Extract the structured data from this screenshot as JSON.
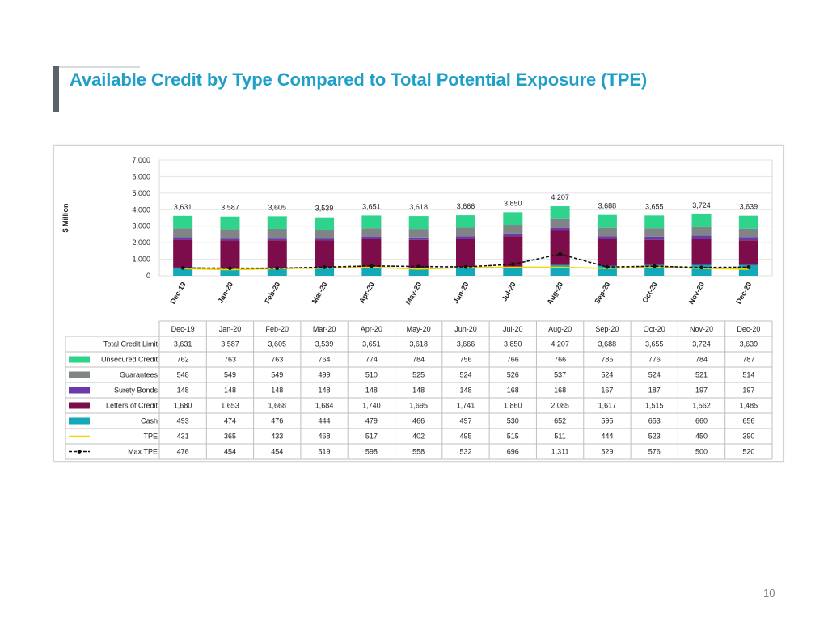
{
  "slide": {
    "title": "Available Credit by Type Compared to Total Potential Exposure (TPE)",
    "page_number": "10"
  },
  "colors": {
    "title": "#1f9fc7",
    "unsecured_credit": "#2ed48b",
    "guarantees": "#7f8487",
    "surety_bonds": "#6a3aa8",
    "letters_of_credit": "#7d0d4a",
    "cash": "#13a9b8",
    "tpe": "#f5d400",
    "max_tpe": "#111111"
  },
  "chart_data": {
    "type": "bar",
    "stacked": true,
    "ylabel": "$ Million",
    "ylim": [
      0,
      7000
    ],
    "yticks": [
      "0",
      "1,000",
      "2,000",
      "3,000",
      "4,000",
      "5,000",
      "6,000",
      "7,000"
    ],
    "grid": true,
    "categories": [
      "Dec-19",
      "Jan-20",
      "Feb-20",
      "Mar-20",
      "Apr-20",
      "May-20",
      "Jun-20",
      "Jul-20",
      "Aug-20",
      "Sep-20",
      "Oct-20",
      "Nov-20",
      "Dec-20"
    ],
    "totals": {
      "name": "Total Credit Limit",
      "values": [
        3631,
        3587,
        3605,
        3539,
        3651,
        3618,
        3666,
        3850,
        4207,
        3688,
        3655,
        3724,
        3639
      ],
      "labels": [
        "3,631",
        "3,587",
        "3,605",
        "3,539",
        "3,651",
        "3,618",
        "3,666",
        "3,850",
        "4,207",
        "3,688",
        "3,655",
        "3,724",
        "3,639"
      ]
    },
    "series": [
      {
        "name": "Unsecured Credit",
        "kind": "bar",
        "color_key": "unsecured_credit",
        "values": [
          762,
          763,
          763,
          764,
          774,
          784,
          756,
          766,
          766,
          785,
          776,
          784,
          787
        ],
        "labels": [
          "762",
          "763",
          "763",
          "764",
          "774",
          "784",
          "756",
          "766",
          "766",
          "785",
          "776",
          "784",
          "787"
        ]
      },
      {
        "name": "Guarantees",
        "kind": "bar",
        "color_key": "guarantees",
        "values": [
          548,
          549,
          549,
          499,
          510,
          525,
          524,
          526,
          537,
          524,
          524,
          521,
          514
        ],
        "labels": [
          "548",
          "549",
          "549",
          "499",
          "510",
          "525",
          "524",
          "526",
          "537",
          "524",
          "524",
          "521",
          "514"
        ]
      },
      {
        "name": "Surety Bonds",
        "kind": "bar",
        "color_key": "surety_bonds",
        "values": [
          148,
          148,
          148,
          148,
          148,
          148,
          148,
          168,
          168,
          167,
          187,
          197,
          197
        ],
        "labels": [
          "148",
          "148",
          "148",
          "148",
          "148",
          "148",
          "148",
          "168",
          "168",
          "167",
          "187",
          "197",
          "197"
        ]
      },
      {
        "name": "Letters of Credit",
        "kind": "bar",
        "color_key": "letters_of_credit",
        "values": [
          1680,
          1653,
          1668,
          1684,
          1740,
          1695,
          1741,
          1860,
          2085,
          1617,
          1515,
          1562,
          1485
        ],
        "labels": [
          "1,680",
          "1,653",
          "1,668",
          "1,684",
          "1,740",
          "1,695",
          "1,741",
          "1,860",
          "2,085",
          "1,617",
          "1,515",
          "1,562",
          "1,485"
        ]
      },
      {
        "name": "Cash",
        "kind": "bar",
        "color_key": "cash",
        "values": [
          493,
          474,
          476,
          444,
          479,
          466,
          497,
          530,
          652,
          595,
          653,
          660,
          656
        ],
        "labels": [
          "493",
          "474",
          "476",
          "444",
          "479",
          "466",
          "497",
          "530",
          "652",
          "595",
          "653",
          "660",
          "656"
        ]
      },
      {
        "name": "TPE",
        "kind": "line",
        "color_key": "tpe",
        "values": [
          431,
          365,
          433,
          468,
          517,
          402,
          495,
          515,
          511,
          444,
          523,
          450,
          390
        ],
        "labels": [
          "431",
          "365",
          "433",
          "468",
          "517",
          "402",
          "495",
          "515",
          "511",
          "444",
          "523",
          "450",
          "390"
        ]
      },
      {
        "name": "Max TPE",
        "kind": "line-dashed",
        "color_key": "max_tpe",
        "values": [
          476,
          454,
          454,
          519,
          598,
          558,
          532,
          696,
          1311,
          529,
          576,
          500,
          520
        ],
        "labels": [
          "476",
          "454",
          "454",
          "519",
          "598",
          "558",
          "532",
          "696",
          "1,311",
          "529",
          "576",
          "500",
          "520"
        ]
      }
    ]
  }
}
